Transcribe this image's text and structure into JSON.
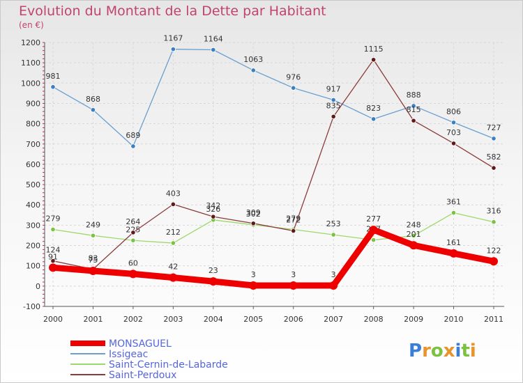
{
  "title": "Evolution du Montant de la Dette par Habitant",
  "subtitle": "(en €)",
  "logo": {
    "letters": [
      "P",
      "r",
      "o",
      "x",
      "i",
      "t",
      "i"
    ],
    "colors": [
      "#3a7fd5",
      "#e8932b",
      "#7cc142",
      "#e8932b",
      "#3a7fd5",
      "#7cc142",
      "#e8932b"
    ]
  },
  "chart_data": {
    "type": "line",
    "title": "Evolution du Montant de la Dette par Habitant",
    "ylabel": "(en €)",
    "ylim": [
      -100,
      1200
    ],
    "yticks": [
      "-100",
      "0",
      "100",
      "200",
      "300",
      "400",
      "500",
      "600",
      "700",
      "800",
      "900",
      "1000",
      "1100",
      "1200"
    ],
    "categories": [
      "2000",
      "2001",
      "2002",
      "2003",
      "2004",
      "2005",
      "2006",
      "2007",
      "2008",
      "2009",
      "2010",
      "2011"
    ],
    "grid": true,
    "legend": "bottom-left",
    "series": [
      {
        "name": "Issigeac",
        "color": "#6a9fd0",
        "marker": "#3a7fc0",
        "values": [
          981,
          868,
          689,
          1167,
          1164,
          1063,
          976,
          917,
          823,
          888,
          806,
          727
        ],
        "labels": [
          "981",
          "868",
          "689",
          "1167",
          "1164",
          "1063",
          "976",
          "917",
          "823",
          "888",
          "806",
          "727"
        ]
      },
      {
        "name": "Saint-Cernin-de-Labarde",
        "color": "#9dd86a",
        "marker": "#7cc142",
        "values": [
          279,
          249,
          225,
          212,
          326,
          302,
          279,
          253,
          227,
          248,
          361,
          316
        ],
        "labels": [
          "279",
          "249",
          "225",
          "212",
          "326",
          "302",
          "279",
          "253",
          "227",
          "248",
          "361",
          "316"
        ]
      },
      {
        "name": "Saint-Perdoux",
        "color": "#8b3a3a",
        "marker": "#5e1a1a",
        "values": [
          124,
          83,
          264,
          403,
          342,
          309,
          272,
          835,
          1115,
          815,
          703,
          582
        ],
        "labels": [
          "124",
          "83",
          "264",
          "403",
          "342",
          "309",
          "272",
          "835",
          "1115",
          "815",
          "703",
          "582"
        ]
      },
      {
        "name": "MONSAGUEL",
        "color": "#ee0000",
        "marker": "#ee0000",
        "values": [
          91,
          75,
          60,
          42,
          23,
          3,
          3,
          3,
          277,
          201,
          161,
          122
        ],
        "labels": [
          "91",
          "75",
          "60",
          "42",
          "23",
          "3",
          "3",
          "3",
          "277",
          "201",
          "161",
          "122"
        ]
      }
    ]
  }
}
